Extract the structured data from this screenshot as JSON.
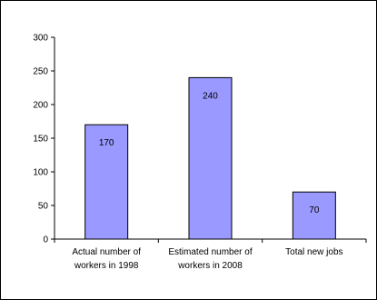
{
  "chart_data": {
    "type": "bar",
    "title": "",
    "xlabel": "",
    "ylabel": "",
    "ylim": [
      0,
      300
    ],
    "yticks": [
      0,
      50,
      100,
      150,
      200,
      250,
      300
    ],
    "grid": false,
    "legend": "none",
    "categories": [
      [
        "Actual number of",
        "workers in 1998"
      ],
      [
        "Estimated number of",
        "workers in 2008"
      ],
      [
        "Total new jobs"
      ]
    ],
    "values": [
      170,
      240,
      70
    ],
    "data_labels": [
      "170",
      "240",
      "70"
    ],
    "bar_color": "#9999FF",
    "bar_stroke": "#000000"
  }
}
